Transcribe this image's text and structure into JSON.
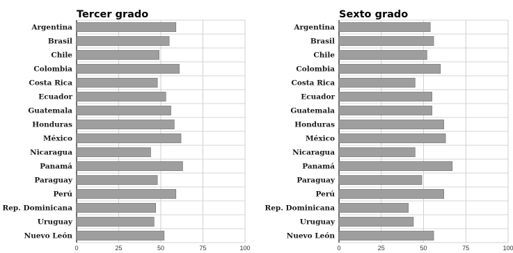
{
  "chart_data": [
    {
      "type": "bar",
      "orientation": "horizontal",
      "title": "Tercer grado",
      "categories": [
        "Argentina",
        "Brasil",
        "Chile",
        "Colombia",
        "Costa Rica",
        "Ecuador",
        "Guatemala",
        "Honduras",
        "México",
        "Nicaragua",
        "Panamá",
        "Paraguay",
        "Perú",
        "Rep. Dominicana",
        "Uruguay",
        "Nuevo León"
      ],
      "values": [
        59,
        55,
        49,
        61,
        48,
        53,
        56,
        58,
        62,
        44,
        63,
        48,
        59,
        47,
        46,
        52
      ],
      "xlim": [
        0,
        100
      ],
      "xticks": [
        "0",
        "25",
        "50",
        "75",
        "100"
      ],
      "grid": true,
      "bar_color": "#9e9e9e"
    },
    {
      "type": "bar",
      "orientation": "horizontal",
      "title": "Sexto grado",
      "categories": [
        "Argentina",
        "Brasil",
        "Chile",
        "Colombia",
        "Costa Rica",
        "Ecuador",
        "Guatemala",
        "Honduras",
        "México",
        "Nicaragua",
        "Panamá",
        "Paraguay",
        "Perú",
        "Rep. Dominicana",
        "Uruguay",
        "Nuevo León"
      ],
      "values": [
        54,
        56,
        52,
        60,
        45,
        55,
        55,
        62,
        63,
        45,
        67,
        49,
        62,
        41,
        44,
        56
      ],
      "xlim": [
        0,
        100
      ],
      "xticks": [
        "0",
        "25",
        "50",
        "75",
        "100"
      ],
      "grid": true,
      "bar_color": "#9e9e9e"
    }
  ]
}
